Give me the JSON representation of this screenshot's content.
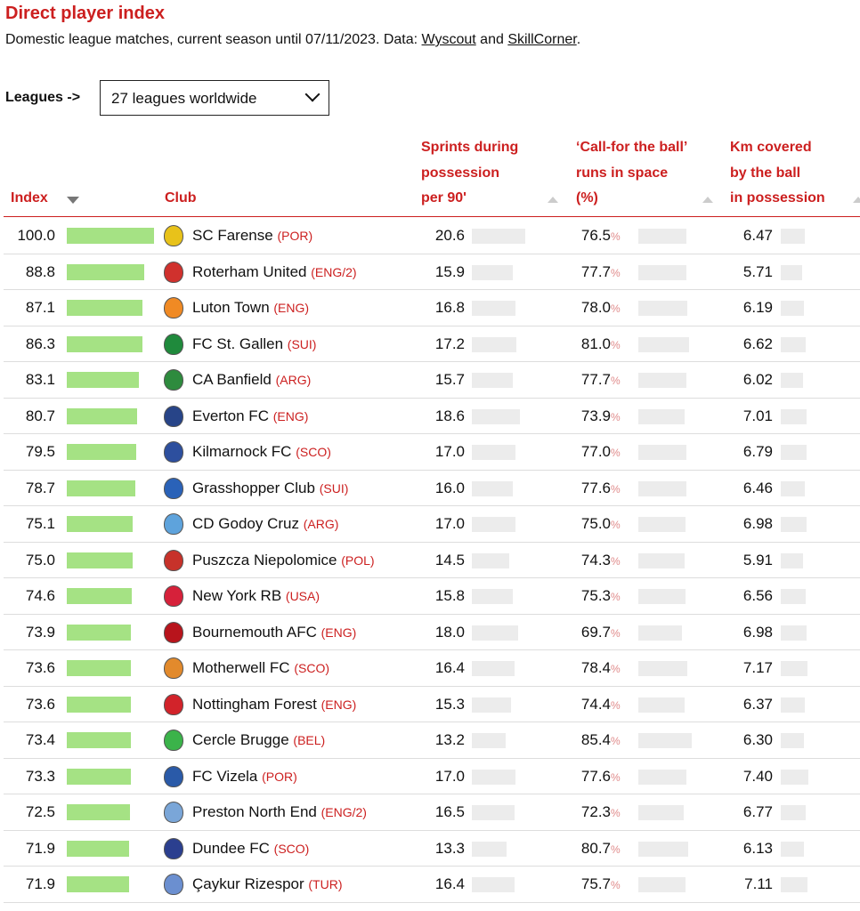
{
  "title": "Direct player index",
  "subtitle": {
    "prefix": "Domestic league matches, current season until 07/11/2023. Data: ",
    "link1": "Wyscout",
    "mid": " and ",
    "link2": "SkillCorner",
    "suffix": "."
  },
  "filter": {
    "label": "Leagues ->",
    "selected": "27 leagues worldwide"
  },
  "columns": {
    "index": "Index",
    "club": "Club",
    "sprints": [
      "Sprints during",
      "possession",
      "per 90'"
    ],
    "runs": [
      "‘Call-for the ball’",
      "runs in space",
      "(%)"
    ],
    "km": [
      "Km covered",
      "by the ball",
      "in possession"
    ]
  },
  "rows": [
    {
      "index": "100.0",
      "club": "SC Farense",
      "country": "(POR)",
      "sprints": "20.6",
      "runs": "76.5",
      "km": "6.47",
      "crest": "#e8c21a"
    },
    {
      "index": "88.8",
      "club": "Roterham United",
      "country": "(ENG/2)",
      "sprints": "15.9",
      "runs": "77.7",
      "km": "5.71",
      "crest": "#d0312d"
    },
    {
      "index": "87.1",
      "club": "Luton Town",
      "country": "(ENG)",
      "sprints": "16.8",
      "runs": "78.0",
      "km": "6.19",
      "crest": "#f08a24"
    },
    {
      "index": "86.3",
      "club": "FC St. Gallen",
      "country": "(SUI)",
      "sprints": "17.2",
      "runs": "81.0",
      "km": "6.62",
      "crest": "#1f8a3c"
    },
    {
      "index": "83.1",
      "club": "CA Banfield",
      "country": "(ARG)",
      "sprints": "15.7",
      "runs": "77.7",
      "km": "6.02",
      "crest": "#2e8b3e"
    },
    {
      "index": "80.7",
      "club": "Everton FC",
      "country": "(ENG)",
      "sprints": "18.6",
      "runs": "73.9",
      "km": "7.01",
      "crest": "#274488"
    },
    {
      "index": "79.5",
      "club": "Kilmarnock FC",
      "country": "(SCO)",
      "sprints": "17.0",
      "runs": "77.0",
      "km": "6.79",
      "crest": "#2d4f9e"
    },
    {
      "index": "78.7",
      "club": "Grasshopper Club",
      "country": "(SUI)",
      "sprints": "16.0",
      "runs": "77.6",
      "km": "6.46",
      "crest": "#2a62b8"
    },
    {
      "index": "75.1",
      "club": "CD Godoy Cruz",
      "country": "(ARG)",
      "sprints": "17.0",
      "runs": "75.0",
      "km": "6.98",
      "crest": "#5ea3dc"
    },
    {
      "index": "75.0",
      "club": "Puszcza Niepolomice",
      "country": "(POL)",
      "sprints": "14.5",
      "runs": "74.3",
      "km": "5.91",
      "crest": "#c7322a"
    },
    {
      "index": "74.6",
      "club": "New York RB",
      "country": "(USA)",
      "sprints": "15.8",
      "runs": "75.3",
      "km": "6.56",
      "crest": "#d6213a"
    },
    {
      "index": "73.9",
      "club": "Bournemouth AFC",
      "country": "(ENG)",
      "sprints": "18.0",
      "runs": "69.7",
      "km": "6.98",
      "crest": "#b8141c"
    },
    {
      "index": "73.6",
      "club": "Motherwell FC",
      "country": "(SCO)",
      "sprints": "16.4",
      "runs": "78.4",
      "km": "7.17",
      "crest": "#e28a2c"
    },
    {
      "index": "73.6",
      "club": "Nottingham Forest",
      "country": "(ENG)",
      "sprints": "15.3",
      "runs": "74.4",
      "km": "6.37",
      "crest": "#d2232a"
    },
    {
      "index": "73.4",
      "club": "Cercle Brugge",
      "country": "(BEL)",
      "sprints": "13.2",
      "runs": "85.4",
      "km": "6.30",
      "crest": "#3bb34a"
    },
    {
      "index": "73.3",
      "club": "FC Vizela",
      "country": "(POR)",
      "sprints": "17.0",
      "runs": "77.6",
      "km": "7.40",
      "crest": "#2a5aa8"
    },
    {
      "index": "72.5",
      "club": "Preston North End",
      "country": "(ENG/2)",
      "sprints": "16.5",
      "runs": "72.3",
      "km": "6.77",
      "crest": "#7aa6d8"
    },
    {
      "index": "71.9",
      "club": "Dundee FC",
      "country": "(SCO)",
      "sprints": "13.3",
      "runs": "80.7",
      "km": "6.13",
      "crest": "#2b3f8f"
    },
    {
      "index": "71.9",
      "club": "Çaykur Rizespor",
      "country": "(TUR)",
      "sprints": "16.4",
      "runs": "75.7",
      "km": "7.11",
      "crest": "#6b8fd0"
    }
  ]
}
